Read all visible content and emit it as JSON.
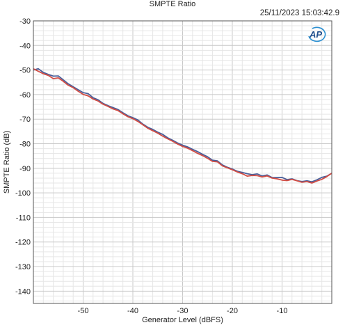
{
  "header": {
    "title": "SMPTE Ratio",
    "timestamp": "25/11/2023 15:03:42.9",
    "logo_text": "AP"
  },
  "chart_data": {
    "type": "line",
    "title": "SMPTE Ratio",
    "xlabel": "Generator Level (dBFS)",
    "ylabel": "SMPTE Ratio (dB)",
    "xlim": [
      -60,
      0
    ],
    "ylim": [
      -145,
      -30
    ],
    "xticks": [
      -50,
      -40,
      -30,
      -20,
      -10
    ],
    "yticks": [
      -30,
      -40,
      -50,
      -60,
      -70,
      -80,
      -90,
      -100,
      -110,
      -120,
      -130,
      -140
    ],
    "grid": true,
    "legend": "none",
    "series": [
      {
        "color": "#4a5f9a",
        "x": [
          -60,
          -59,
          -58,
          -57,
          -56,
          -55,
          -54,
          -53,
          -52,
          -51,
          -50,
          -49,
          -48,
          -47,
          -46,
          -45,
          -44,
          -43,
          -42,
          -41,
          -40,
          -39,
          -38,
          -37,
          -36,
          -35,
          -34,
          -33,
          -32,
          -31,
          -30,
          -29,
          -28,
          -27,
          -26,
          -25,
          -24,
          -23,
          -22,
          -21,
          -20,
          -19,
          -18,
          -17,
          -16,
          -15,
          -14,
          -13,
          -12,
          -11,
          -10,
          -9,
          -8,
          -7,
          -6,
          -5,
          -4,
          -3,
          -2,
          -1,
          0
        ],
        "values": [
          -50,
          -49.5,
          -51,
          -51.8,
          -52.5,
          -52.4,
          -54,
          -55.6,
          -56.8,
          -58,
          -59.2,
          -59.6,
          -61.3,
          -62.1,
          -63.6,
          -64.5,
          -65.3,
          -66.1,
          -67.4,
          -68.6,
          -69.4,
          -70.3,
          -72,
          -73.3,
          -74.2,
          -75.3,
          -76.2,
          -77.6,
          -78.6,
          -79.7,
          -80.6,
          -81.3,
          -82.3,
          -83.2,
          -84.3,
          -85.3,
          -86.7,
          -87,
          -88.6,
          -89.6,
          -90.3,
          -91.2,
          -91.7,
          -92.2,
          -92.6,
          -92.3,
          -93.1,
          -92.7,
          -93.8,
          -93.8,
          -93.7,
          -94.6,
          -94.3,
          -95,
          -95.4,
          -95.1,
          -95.5,
          -94.7,
          -93.7,
          -93.2,
          -92
        ]
      },
      {
        "color": "#d24d44",
        "x": [
          -60,
          -59,
          -58,
          -57,
          -56,
          -55,
          -54,
          -53,
          -52,
          -51,
          -50,
          -49,
          -48,
          -47,
          -46,
          -45,
          -44,
          -43,
          -42,
          -41,
          -40,
          -39,
          -38,
          -37,
          -36,
          -35,
          -34,
          -33,
          -32,
          -31,
          -30,
          -29,
          -28,
          -27,
          -26,
          -25,
          -24,
          -23,
          -22,
          -21,
          -20,
          -19,
          -18,
          -17,
          -16,
          -15,
          -14,
          -13,
          -12,
          -11,
          -10,
          -9,
          -8,
          -7,
          -6,
          -5,
          -4,
          -3,
          -2,
          -1,
          0
        ],
        "values": [
          -49.5,
          -50.5,
          -51.5,
          -52.2,
          -53.5,
          -53.2,
          -54.6,
          -56.2,
          -57.2,
          -58.6,
          -59.9,
          -60.5,
          -61.8,
          -62.6,
          -63.9,
          -64.8,
          -65.8,
          -66.5,
          -67.8,
          -69,
          -69.8,
          -70.9,
          -72.3,
          -73.7,
          -74.7,
          -75.7,
          -76.9,
          -78,
          -79,
          -80.1,
          -81.1,
          -81.8,
          -82.8,
          -83.9,
          -84.8,
          -85.9,
          -87.2,
          -87.4,
          -89,
          -89.8,
          -90.6,
          -91.5,
          -92.2,
          -93.2,
          -92.9,
          -93,
          -93.5,
          -93.1,
          -94,
          -94.3,
          -94.8,
          -95,
          -94.5,
          -95.1,
          -95.7,
          -95.4,
          -96,
          -95.2,
          -94.5,
          -93.4,
          -92
        ]
      }
    ]
  }
}
